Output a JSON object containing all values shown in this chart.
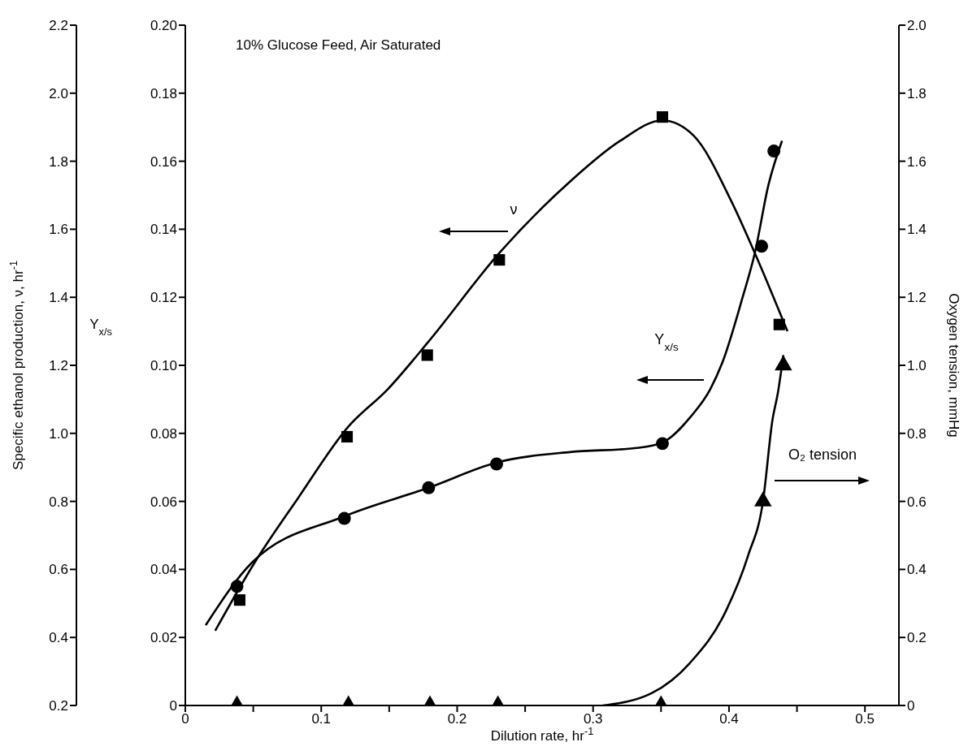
{
  "chart_data": {
    "type": "line",
    "title": "10% Glucose Feed, Air Saturated",
    "xlabel": "Dilution rate, hr$^{-1}$",
    "ylabel": "Y$_{x/s}$",
    "y2label": "Oxygen tension, mmHg",
    "y3label": "Specific ethanol production, ν, hr$^{-1}$",
    "xlim": [
      0,
      0.525
    ],
    "xticks": [
      0,
      {
        "value": 0.05,
        "label": null
      },
      0.1,
      {
        "value": 0.15,
        "label": null
      },
      0.2,
      {
        "value": 0.25,
        "label": null
      },
      0.3,
      {
        "value": 0.35,
        "label": null
      },
      0.4,
      {
        "value": 0.45,
        "label": null
      },
      0.5
    ],
    "ylim": [
      0,
      0.2
    ],
    "yticks": [
      0,
      0.02,
      0.04,
      0.06,
      0.08,
      {
        "value": 0.1,
        "label": "0.10"
      },
      0.12,
      0.14,
      0.16,
      0.18,
      {
        "value": 0.2,
        "label": "0.20"
      }
    ],
    "y2lim": [
      0,
      2
    ],
    "y2ticks": [
      0,
      0.2,
      0.4,
      0.6,
      0.8,
      {
        "value": 1,
        "label": "1.0"
      },
      1.2,
      1.4,
      1.6,
      1.8,
      {
        "value": 2,
        "label": "2.0"
      }
    ],
    "y3lim": [
      0.2,
      2.2
    ],
    "y3ticks": [
      0.2,
      0.4,
      0.6,
      0.8,
      {
        "value": 1,
        "label": "1.0"
      },
      1.2,
      1.4,
      1.6,
      1.8,
      {
        "value": 2,
        "label": "2.0"
      },
      2.2
    ],
    "annotations": [
      "ν",
      "Y$_{x/s}$",
      "O₂ tension"
    ],
    "series": [
      {
        "axis": "y3",
        "color": "#000000",
        "marker": "none",
        "line_style": "solid",
        "x": [
          0.022,
          0.051,
          0.083,
          0.12,
          0.149,
          0.179,
          0.231,
          0.283,
          0.32,
          0.351,
          0.374,
          0.402,
          0.419,
          0.443
        ],
        "values": [
          0.42,
          0.62,
          0.81,
          1.02,
          1.13,
          1.27,
          1.53,
          1.74,
          1.86,
          1.92,
          1.875,
          1.68,
          1.53,
          1.3
        ]
      },
      {
        "type": "scatter",
        "axis": "y3",
        "color": "#000000",
        "marker": "square",
        "x": [
          0.04,
          0.119,
          0.178,
          0.231,
          0.351,
          0.437
        ],
        "values": [
          0.51,
          0.99,
          1.23,
          1.51,
          1.93,
          1.32
        ]
      },
      {
        "color": "#000000",
        "marker": "none",
        "line_style": "solid",
        "x": [
          0.015,
          0.049,
          0.117,
          0.179,
          0.229,
          0.283,
          0.332,
          0.351,
          0.372,
          0.386,
          0.395,
          0.41,
          0.419,
          0.429,
          0.439
        ],
        "values": [
          0.0236,
          0.042,
          0.0556,
          0.064,
          0.0714,
          0.0745,
          0.0757,
          0.0773,
          0.085,
          0.0928,
          0.1007,
          0.12,
          0.133,
          0.153,
          0.166
        ]
      },
      {
        "type": "scatter",
        "color": "#000000",
        "marker": "circle",
        "x": [
          0.038,
          0.117,
          0.179,
          0.229,
          0.351,
          0.424,
          0.433
        ],
        "values": [
          0.035,
          0.055,
          0.064,
          0.071,
          0.077,
          0.135,
          0.163
        ]
      },
      {
        "axis": "y2",
        "color": "#000000",
        "marker": "none",
        "line_style": "solid",
        "x": [
          0.307,
          0.343,
          0.371,
          0.398,
          0.414,
          0.425,
          0.432,
          0.436,
          0.44
        ],
        "values": [
          0,
          0.036,
          0.124,
          0.28,
          0.44,
          0.6,
          0.84,
          0.92,
          1.03
        ]
      },
      {
        "type": "scatter",
        "axis": "y2",
        "color": "#000000",
        "marker": "triangle",
        "x": [
          0.038,
          0.12,
          0.18,
          0.23,
          0.35,
          0.425,
          0.44
        ],
        "values": [
          0,
          0,
          0,
          0,
          0,
          0.6,
          1.0
        ]
      }
    ]
  }
}
